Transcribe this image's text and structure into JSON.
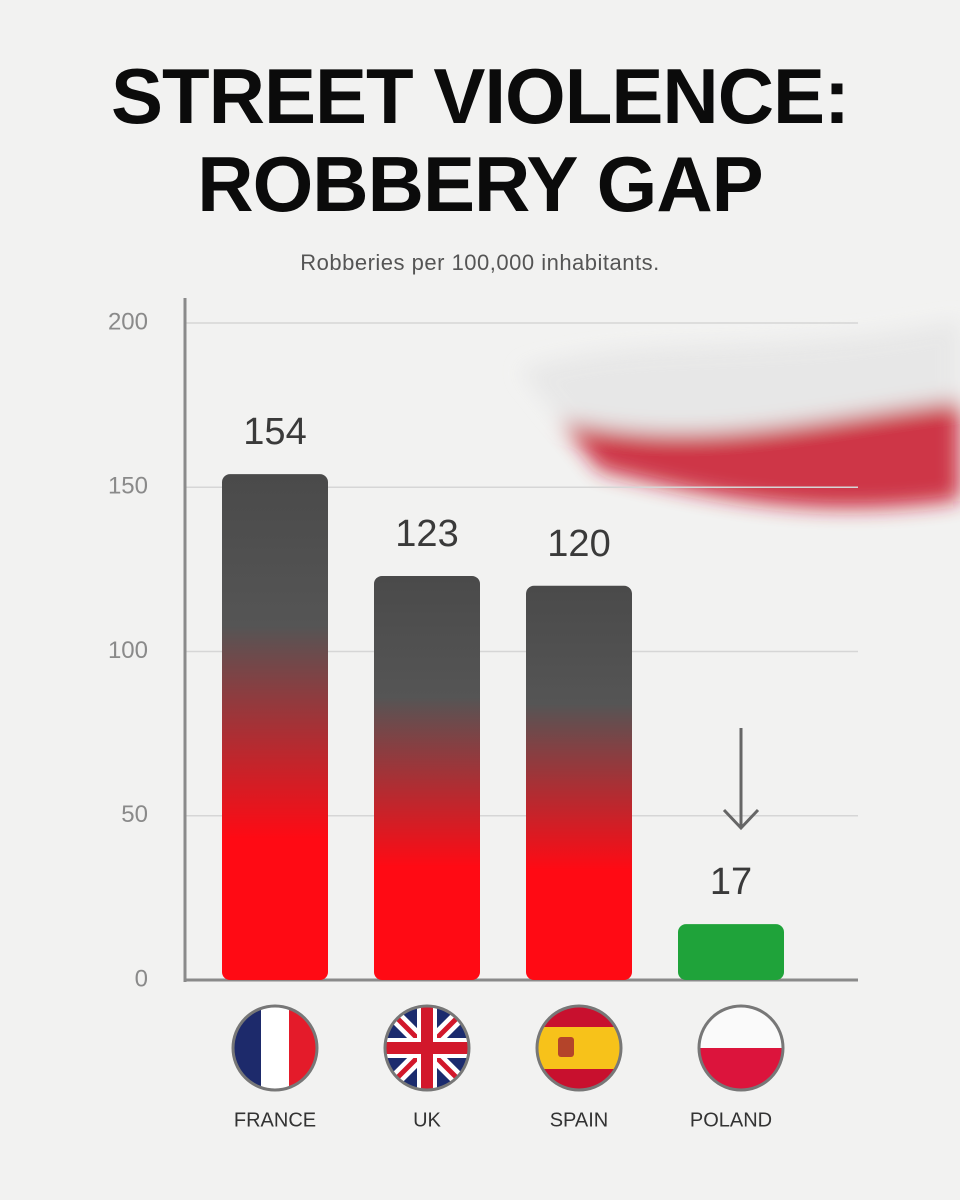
{
  "chart_data": {
    "type": "bar",
    "title": "STREET VIOLENCE: ROBBERY GAP",
    "subtitle": "Robberies per 100,000 inhabitants.",
    "categories": [
      "FRANCE",
      "UK",
      "SPAIN",
      "POLAND"
    ],
    "values": [
      154,
      123,
      120,
      17
    ],
    "colors": [
      "#ff0a14",
      "#ff0a14",
      "#ff0a14",
      "#1fa33a"
    ],
    "ylim": [
      0,
      200
    ],
    "yticks": [
      0,
      50,
      100,
      150,
      200
    ],
    "grid": true
  }
}
